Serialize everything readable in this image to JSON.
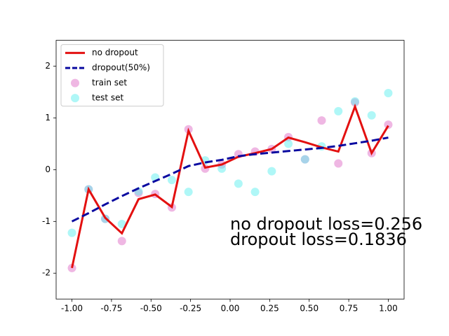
{
  "chart_data": {
    "type": "line",
    "x": [
      -1,
      -0.8947,
      -0.7895,
      -0.6842,
      -0.5789,
      -0.4737,
      -0.3684,
      -0.2632,
      -0.1579,
      -0.0526,
      0.0526,
      0.1579,
      0.2632,
      0.3684,
      0.4737,
      0.5789,
      0.6842,
      0.7895,
      0.8947,
      1
    ],
    "series": [
      {
        "name": "no dropout",
        "type": "line",
        "color": "#e31010",
        "linestyle": "solid",
        "values": [
          -1.9,
          -0.38,
          -0.93,
          -1.23,
          -0.57,
          -0.48,
          -0.72,
          0.75,
          0.04,
          0.1,
          0.25,
          0.32,
          0.4,
          0.62,
          0.53,
          0.43,
          0.35,
          1.22,
          0.32,
          0.85
        ]
      },
      {
        "name": "dropout(50%)",
        "type": "line",
        "color": "#0a0aa0",
        "linestyle": "dashed",
        "values": [
          -1.0,
          -0.84,
          -0.67,
          -0.51,
          -0.36,
          -0.22,
          -0.08,
          0.07,
          0.14,
          0.19,
          0.26,
          0.3,
          0.33,
          0.36,
          0.39,
          0.42,
          0.46,
          0.51,
          0.56,
          0.62
        ]
      },
      {
        "name": "train set",
        "type": "scatter",
        "color": "#e070c8",
        "alpha": 0.5,
        "values": [
          -1.9,
          -0.38,
          -0.95,
          -1.38,
          -0.45,
          -0.47,
          -0.73,
          0.78,
          0.02,
          0.1,
          0.3,
          0.35,
          0.4,
          0.63,
          0.2,
          0.95,
          0.12,
          1.3,
          0.32,
          0.87
        ]
      },
      {
        "name": "test set",
        "type": "scatter",
        "color": "#60f0f0",
        "alpha": 0.5,
        "values": [
          -1.22,
          -0.38,
          -0.95,
          -1.05,
          -0.42,
          -0.15,
          -0.2,
          -0.43,
          0.18,
          0.02,
          -0.27,
          -0.43,
          -0.03,
          0.5,
          0.2,
          0.45,
          1.13,
          1.32,
          1.05,
          1.48
        ]
      }
    ],
    "xlim": [
      -1.1,
      1.1
    ],
    "ylim": [
      -2.5,
      2.5
    ],
    "xticks": [
      {
        "value": -1,
        "label": "-1.00"
      },
      {
        "value": -0.75,
        "label": "-0.75"
      },
      {
        "value": -0.5,
        "label": "-0.50"
      },
      {
        "value": -0.25,
        "label": "-0.25"
      },
      {
        "value": 0,
        "label": "0.00"
      },
      {
        "value": 0.25,
        "label": "0.25"
      },
      {
        "value": 0.5,
        "label": "0.50"
      },
      {
        "value": 0.75,
        "label": "0.75"
      },
      {
        "value": 1,
        "label": "1.00"
      }
    ],
    "yticks": [
      -2,
      -1,
      0,
      1,
      2
    ],
    "legend": "upper left",
    "annotations": [
      {
        "text": "no dropout loss=0.256",
        "color": "#e31010"
      },
      {
        "text": "dropout loss=0.1836",
        "color": "#0a0a90"
      }
    ]
  }
}
